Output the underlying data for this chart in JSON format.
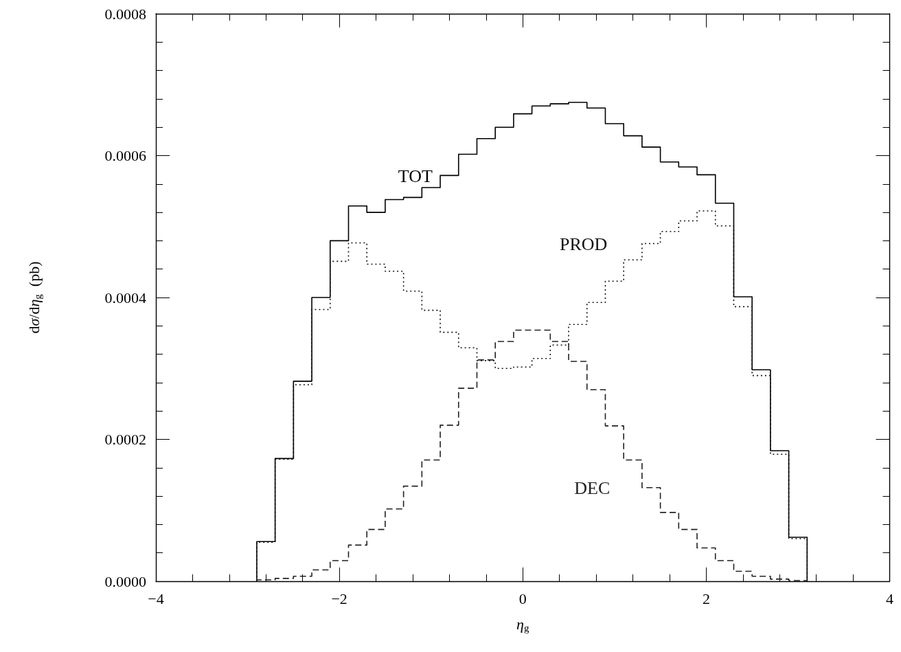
{
  "chart_data": {
    "type": "histogram",
    "xlabel": "η$_{g}$",
    "ylabel": "dσ/dη$_{g}$  (pb)",
    "bins": [
      -2.9,
      -2.7,
      -2.5,
      -2.3,
      -2.1,
      -1.9,
      -1.7,
      -1.5,
      -1.3,
      -1.1,
      -0.9,
      -0.7,
      -0.5,
      -0.3,
      -0.1,
      0.1,
      0.3,
      0.5,
      0.7,
      0.9,
      1.1,
      1.3,
      1.5,
      1.7,
      1.9,
      2.1,
      2.3,
      2.5,
      2.7,
      2.9,
      3.1
    ],
    "series": [
      {
        "name": "TOT",
        "color": "#000000",
        "line_style": "solid",
        "values": [
          5.6e-05,
          0.000173,
          0.000282,
          0.0004,
          0.00048,
          0.000529,
          0.00052,
          0.000538,
          0.000541,
          0.000555,
          0.000572,
          0.000602,
          0.000624,
          0.00064,
          0.000659,
          0.00067,
          0.000673,
          0.000675,
          0.000667,
          0.000645,
          0.000628,
          0.000612,
          0.000591,
          0.000584,
          0.000573,
          0.000533,
          0.000401,
          0.000298,
          0.000184,
          6.2e-05
        ]
      },
      {
        "name": "PROD",
        "color": "#111111",
        "line_style": "dotted",
        "values": [
          5.5e-05,
          0.000172,
          0.000277,
          0.000383,
          0.000451,
          0.000477,
          0.000447,
          0.000437,
          0.000409,
          0.000382,
          0.000351,
          0.000329,
          0.000311,
          0.0003,
          0.000302,
          0.000314,
          0.000333,
          0.000362,
          0.000393,
          0.000423,
          0.000453,
          0.000476,
          0.000493,
          0.000508,
          0.000522,
          0.000501,
          0.000387,
          0.00029,
          0.000179,
          6e-05
        ]
      },
      {
        "name": "DEC",
        "color": "#222222",
        "line_style": "dashed",
        "values": [
          2e-06,
          4e-06,
          7e-06,
          1.6e-05,
          2.9e-05,
          5.1e-05,
          7.3e-05,
          0.000102,
          0.000134,
          0.000171,
          0.00022,
          0.000272,
          0.000312,
          0.000338,
          0.000354,
          0.000354,
          0.000338,
          0.00031,
          0.00027,
          0.000219,
          0.000171,
          0.000132,
          9.7e-05,
          7.3e-05,
          4.7e-05,
          2.9e-05,
          1.4e-05,
          7e-06,
          3e-06,
          1e-06
        ]
      }
    ],
    "xlim": [
      -4,
      4
    ],
    "xticks": [
      {
        "value": -4,
        "label": "−4"
      },
      {
        "value": -2,
        "label": "−2"
      },
      0,
      2,
      4
    ],
    "ylim": [
      0,
      0.0008
    ],
    "yticks": [
      {
        "value": 0,
        "label": "0.0000"
      },
      {
        "value": 0.0002,
        "label": "0.0002"
      },
      {
        "value": 0.0004,
        "label": "0.0004"
      },
      {
        "value": 0.0006,
        "label": "0.0006"
      },
      {
        "value": 0.0008,
        "label": "0.0008"
      }
    ],
    "grid": false,
    "legend": false
  }
}
